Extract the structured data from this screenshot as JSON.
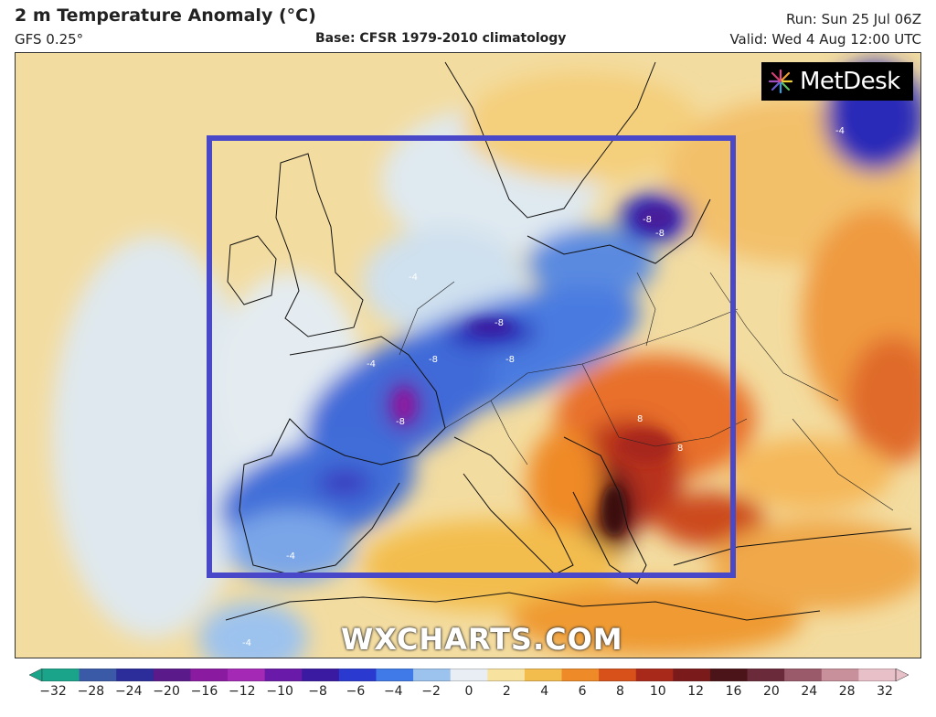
{
  "header": {
    "title": "2 m Temperature Anomaly (°C)",
    "model": "GFS 0.25°",
    "base": "Base: CFSR 1979-2010 climatology",
    "run": "Run: Sun 25 Jul 06Z",
    "valid": "Valid: Wed 4 Aug 12:00 UTC"
  },
  "branding": {
    "logo_text": "MetDesk",
    "watermark": "WXCHARTS.COM"
  },
  "contour_labels": [
    "-4",
    "-8",
    "-8",
    "-8",
    "-8",
    "-8",
    "-8",
    "-4",
    "-4",
    "-4",
    "8",
    "8",
    "-4"
  ],
  "colorbar": {
    "ticks": [
      "−32",
      "−28",
      "−24",
      "−20",
      "−16",
      "−12",
      "−10",
      "−8",
      "−6",
      "−4",
      "−2",
      "0",
      "2",
      "4",
      "6",
      "8",
      "10",
      "12",
      "16",
      "20",
      "24",
      "28",
      "32"
    ],
    "colors": [
      "#1aa58a",
      "#3a5aa8",
      "#2c2c9a",
      "#5a1a8a",
      "#8a1aa0",
      "#a42ab6",
      "#6a1aa8",
      "#3a1aa0",
      "#2a3ad0",
      "#3f7ae8",
      "#9cc2ee",
      "#e8eef4",
      "#f8e2a0",
      "#f3bd4e",
      "#ef8a28",
      "#d8501a",
      "#a8281a",
      "#7a1a1a",
      "#4a1418",
      "#6a2a3a",
      "#9a5a6a",
      "#c8909a",
      "#e8c0c8"
    ]
  },
  "annotation": {
    "box_color": "#4848c8",
    "region": "highlight box over western and central Europe"
  }
}
